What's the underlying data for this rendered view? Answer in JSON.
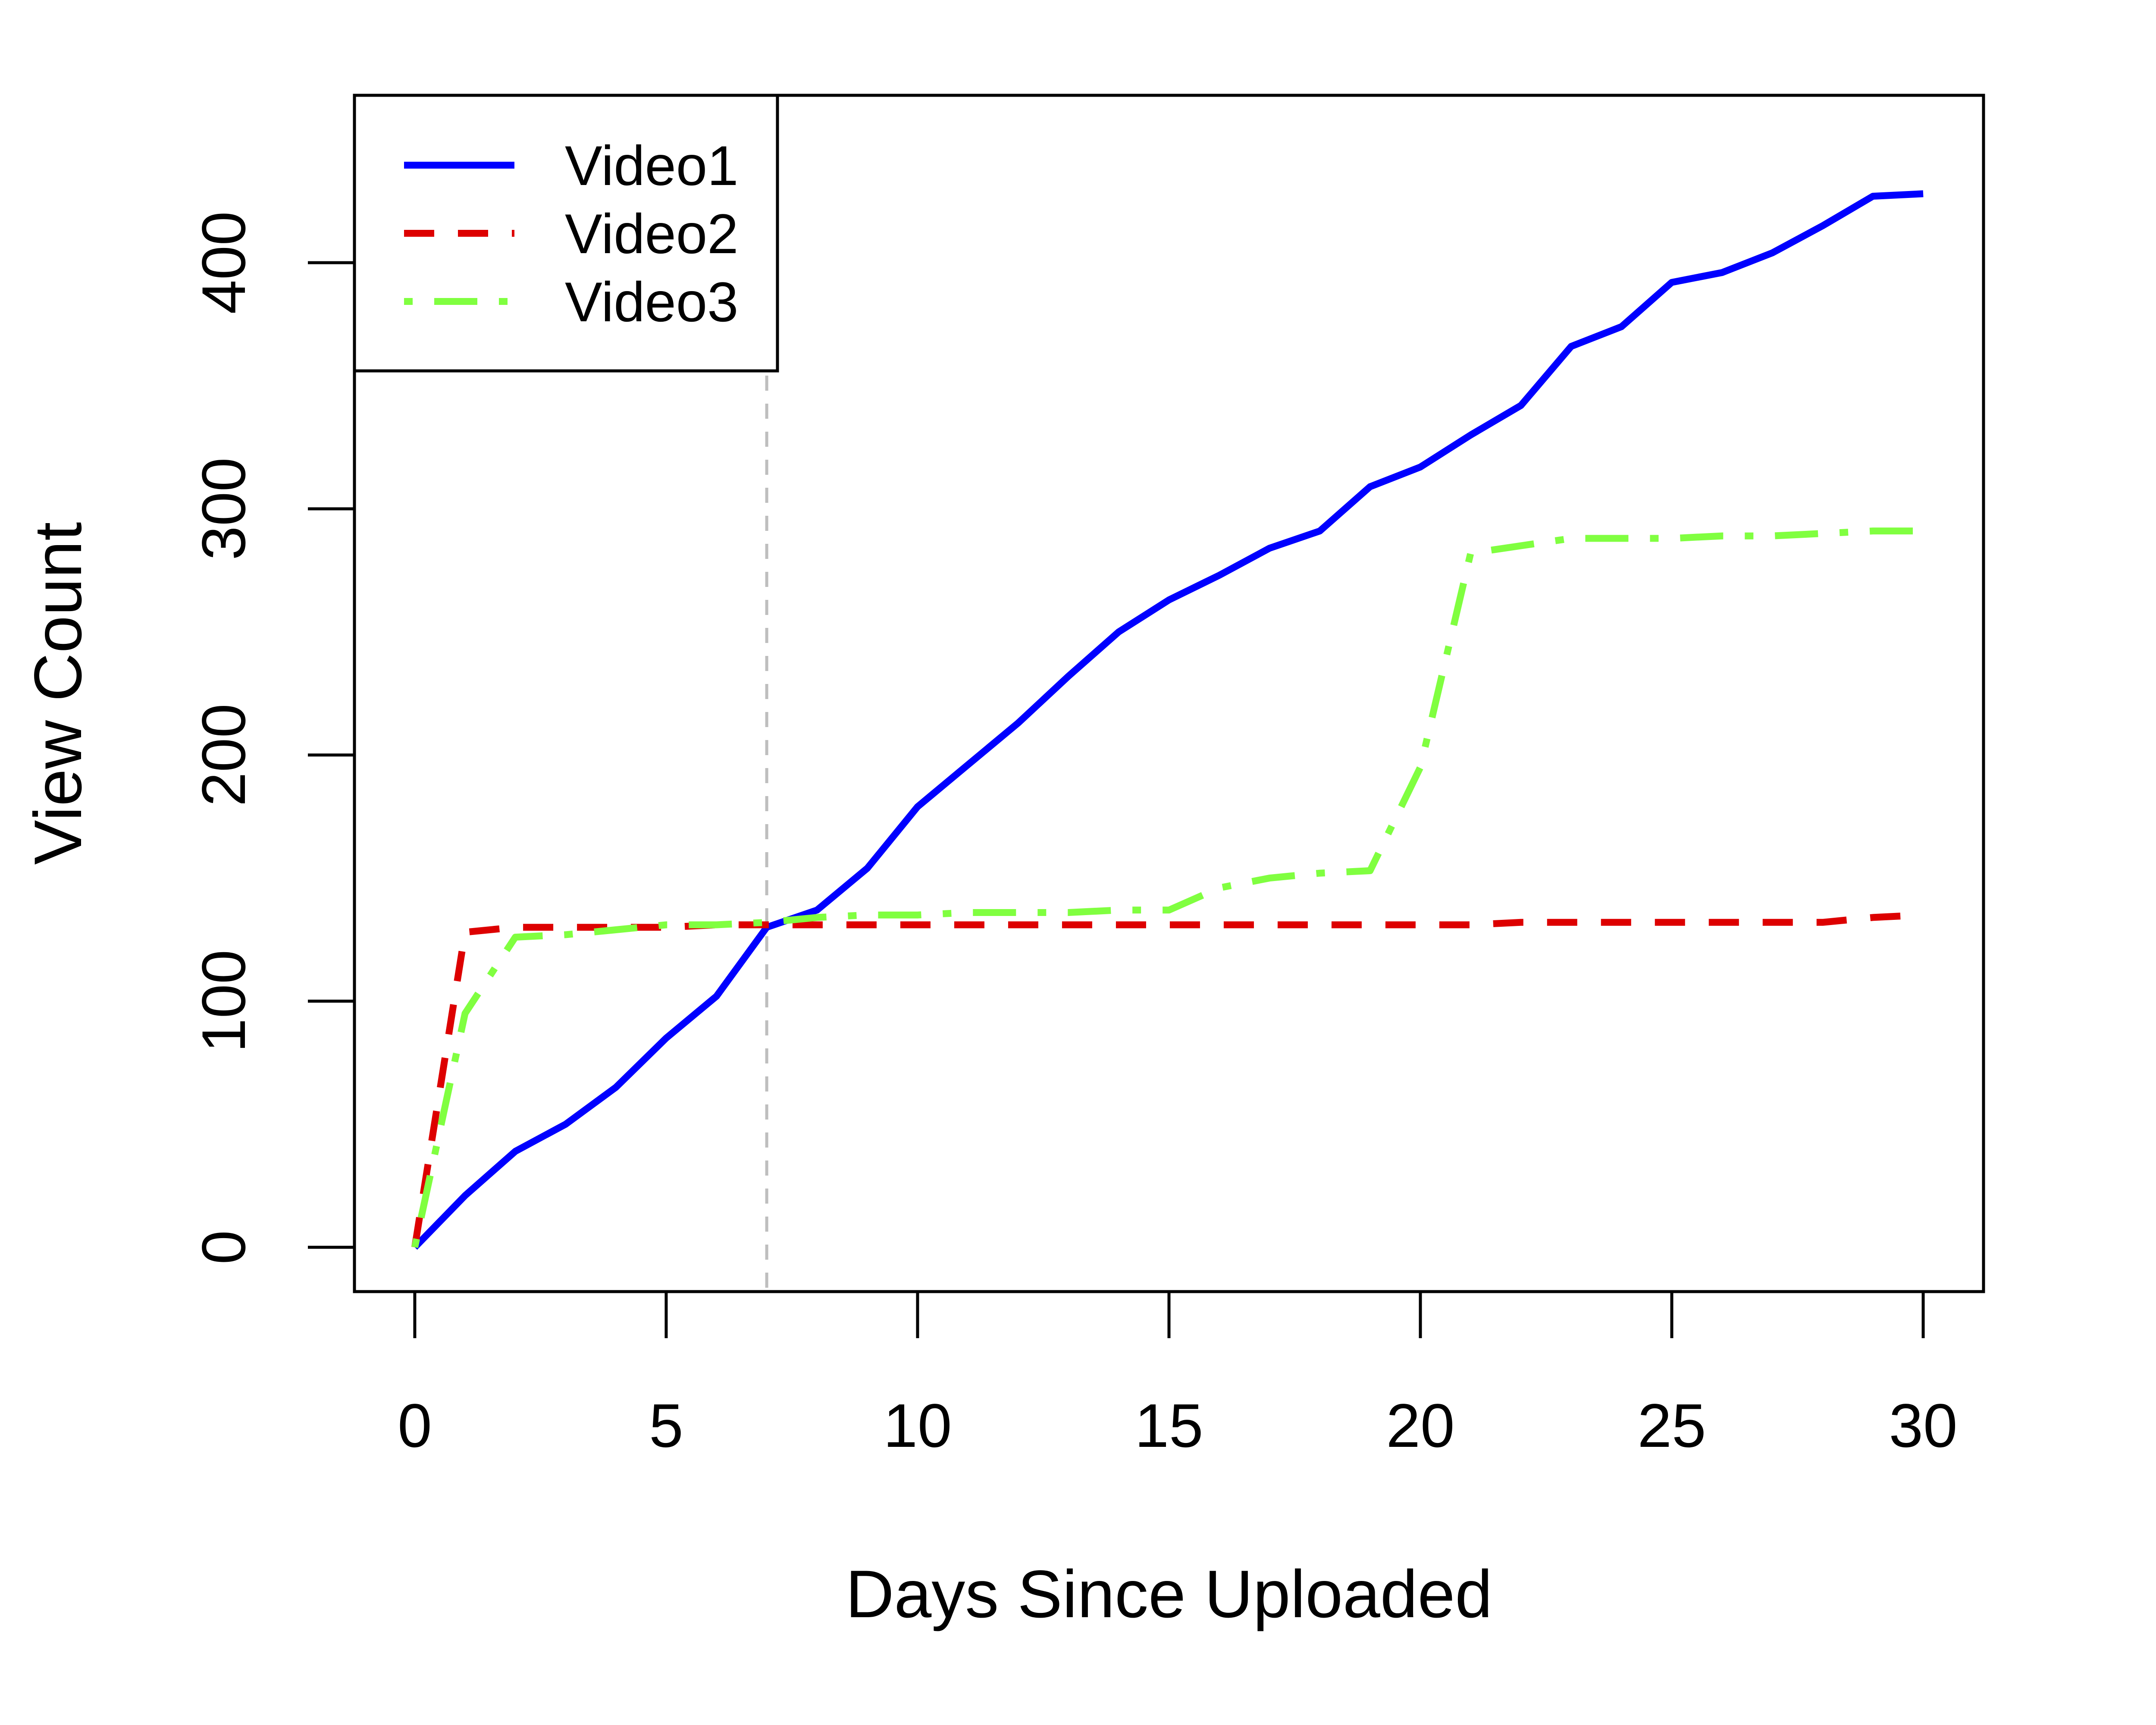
{
  "chart_data": {
    "type": "line",
    "title": "",
    "xlabel": "Days Since Uploaded",
    "ylabel": "View Count",
    "xlim": [
      -1.2,
      31.2
    ],
    "ylim": [
      -18,
      468
    ],
    "x_ticks": [
      0,
      5,
      10,
      15,
      20,
      25,
      30
    ],
    "y_ticks": [
      0,
      100,
      200,
      300,
      400
    ],
    "grid": false,
    "legend_position": "top-left",
    "reference_line": {
      "x": 7,
      "color": "#bebebe",
      "style": "dashed"
    },
    "x": [
      0,
      1,
      2,
      3,
      4,
      5,
      6,
      7,
      8,
      9,
      10,
      11,
      12,
      13,
      14,
      15,
      16,
      17,
      18,
      19,
      20,
      21,
      22,
      23,
      24,
      25,
      26,
      27,
      28,
      29,
      30
    ],
    "series": [
      {
        "name": "Video1",
        "color": "#0000ff",
        "style": "solid",
        "values": [
          0,
          21,
          39,
          50,
          65,
          85,
          102,
          130,
          137,
          154,
          179,
          196,
          213,
          232,
          250,
          263,
          273,
          284,
          291,
          309,
          317,
          330,
          342,
          366,
          374,
          392,
          396,
          404,
          415,
          427,
          428
        ]
      },
      {
        "name": "Video2",
        "color": "#dd0000",
        "style": "dashed",
        "values": [
          0,
          128,
          130,
          130,
          130,
          130,
          131,
          131,
          131,
          131,
          131,
          131,
          131,
          131,
          131,
          131,
          131,
          131,
          131,
          131,
          131,
          131,
          132,
          132,
          132,
          132,
          132,
          132,
          132,
          134,
          135
        ]
      },
      {
        "name": "Video3",
        "color": "#80ff40",
        "style": "dotdash",
        "values": [
          0,
          95,
          126,
          127,
          129,
          131,
          131,
          132,
          134,
          135,
          135,
          136,
          136,
          136,
          137,
          137,
          146,
          150,
          152,
          153,
          195,
          282,
          285,
          288,
          288,
          288,
          289,
          289,
          290,
          291,
          291
        ]
      }
    ]
  }
}
